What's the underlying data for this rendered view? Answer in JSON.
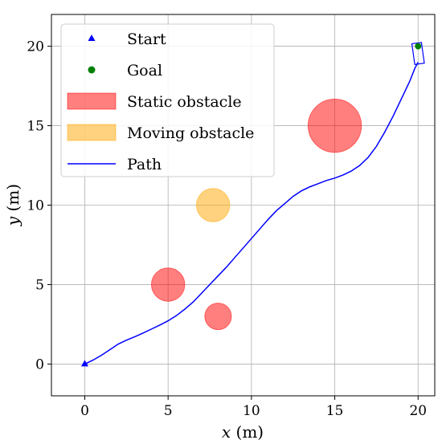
{
  "chart_data": {
    "type": "scatter",
    "xlabel": {
      "var": "x",
      "unit": " (m)"
    },
    "ylabel": {
      "var": "y",
      "unit": " (m)"
    },
    "xlim": [
      -2,
      21
    ],
    "ylim": [
      -2,
      22
    ],
    "xticks": [
      0,
      5,
      10,
      15,
      20
    ],
    "yticks": [
      0,
      5,
      10,
      15,
      20
    ],
    "xtick_labels": [
      "0",
      "5",
      "10",
      "15",
      "20"
    ],
    "ytick_labels": [
      "0",
      "5",
      "10",
      "15",
      "20"
    ],
    "grid": true,
    "legend_position": "top-left",
    "series": [
      {
        "name": "Start",
        "kind": "marker",
        "marker": "triangle",
        "color": "#0000ff",
        "points": [
          [
            0,
            0
          ]
        ]
      },
      {
        "name": "Goal",
        "kind": "marker",
        "marker": "circle",
        "color": "#008000",
        "points": [
          [
            20,
            20
          ]
        ]
      },
      {
        "name": "Static obstacle",
        "kind": "circles",
        "color": "#ff0000",
        "alpha": 0.5,
        "circles": [
          {
            "x": 15,
            "y": 15,
            "r": 1.6
          },
          {
            "x": 5,
            "y": 5,
            "r": 1.0
          },
          {
            "x": 8,
            "y": 3,
            "r": 0.8
          }
        ]
      },
      {
        "name": "Moving obstacle",
        "kind": "circles",
        "color": "#ffa500",
        "alpha": 0.5,
        "circles": [
          {
            "x": 7.7,
            "y": 10,
            "r": 1.0
          }
        ]
      },
      {
        "name": "Path",
        "kind": "line",
        "color": "#0000ff",
        "x": [
          0,
          0.5,
          1.0,
          1.5,
          2.0,
          2.5,
          3.0,
          3.5,
          4.0,
          4.5,
          5.0,
          5.5,
          6.0,
          6.5,
          7.0,
          7.5,
          8.0,
          8.5,
          9.0,
          9.5,
          10.0,
          10.5,
          11.0,
          11.5,
          12.0,
          12.5,
          13.0,
          13.5,
          14.0,
          14.5,
          15.0,
          15.5,
          16.0,
          16.5,
          17.0,
          17.5,
          18.0,
          18.5,
          19.0,
          19.5,
          19.8,
          20.0
        ],
        "y": [
          0,
          0.25,
          0.55,
          0.9,
          1.25,
          1.5,
          1.72,
          1.95,
          2.2,
          2.45,
          2.72,
          3.05,
          3.45,
          3.9,
          4.45,
          5.0,
          5.55,
          6.1,
          6.7,
          7.3,
          7.9,
          8.5,
          9.1,
          9.65,
          10.1,
          10.55,
          10.9,
          11.15,
          11.35,
          11.55,
          11.7,
          11.9,
          12.15,
          12.5,
          13.0,
          13.7,
          14.6,
          15.6,
          16.7,
          17.8,
          18.6,
          19.0
        ]
      }
    ],
    "annotations": [
      {
        "type": "vehicle-box",
        "x": 20,
        "y": 20
      }
    ]
  }
}
